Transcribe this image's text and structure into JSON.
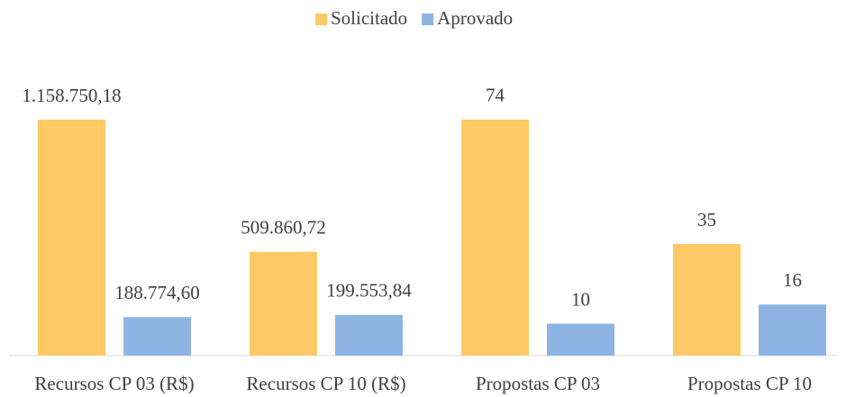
{
  "chart_data": [
    {
      "type": "bar",
      "categories": [
        "Recursos CP 03 (R$)",
        "Recursos CP 10 (R$)"
      ],
      "ylim": [
        0,
        1300000
      ],
      "series": [
        {
          "name": "Solicitado",
          "color": "#FFC966",
          "values": [
            1158750.18,
            509860.72
          ],
          "value_labels": [
            "1.158.750,18",
            "509.860,72"
          ]
        },
        {
          "name": "Aprovado",
          "color": "#8EB4E3",
          "values": [
            188774.6,
            199553.84
          ],
          "value_labels": [
            "188.774,60",
            "199.553,84"
          ]
        }
      ]
    },
    {
      "type": "bar",
      "categories": [
        "Propostas CP 03",
        "Propostas CP 10"
      ],
      "ylim": [
        0,
        83
      ],
      "series": [
        {
          "color": "#FFC966",
          "values": [
            74,
            35
          ]
        },
        {
          "color": "#8EB4E3",
          "values": [
            10,
            16
          ]
        }
      ]
    }
  ]
}
